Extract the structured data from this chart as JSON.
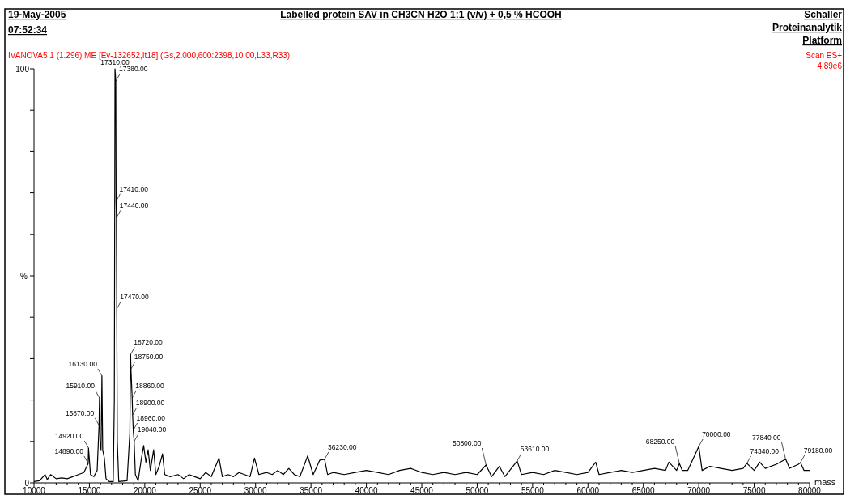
{
  "chart_data": {
    "type": "line",
    "title": "Labelled protein SAV in CH3CN H2O 1:1 (v/v) + 0,5 % HCOOH",
    "subtitle": "IVANOVA5  1 (1.296) ME [Ev-132652,It18] (Gs,2.000,600:2398,10.00,L33,R33)",
    "xlabel": "mass",
    "ylabel": "%",
    "color": "#000000",
    "x": [
      10000,
      10500,
      11000,
      11200,
      11500,
      12000,
      12500,
      13000,
      13500,
      14000,
      14500,
      14890,
      14920,
      15100,
      15400,
      15700,
      15870,
      15910,
      15960,
      16050,
      16130,
      16200,
      16350,
      16500,
      16800,
      17150,
      17250,
      17300,
      17310,
      17380,
      17410,
      17440,
      17470,
      17520,
      17650,
      18400,
      18650,
      18720,
      18750,
      18860,
      18900,
      18960,
      19040,
      19150,
      19400,
      19700,
      19900,
      20100,
      20300,
      20500,
      20800,
      21000,
      21300,
      21600,
      21800,
      22300,
      23000,
      23500,
      24000,
      24500,
      25000,
      25500,
      26000,
      26700,
      27000,
      27500,
      28000,
      28500,
      29000,
      29500,
      29900,
      30300,
      31000,
      31500,
      32000,
      32500,
      33000,
      33500,
      34000,
      34700,
      35200,
      35800,
      36230,
      36500,
      37000,
      38000,
      39000,
      40000,
      41000,
      42000,
      43000,
      44000,
      45000,
      46000,
      47000,
      48000,
      49000,
      50000,
      50800,
      51300,
      52000,
      52500,
      53610,
      54000,
      55000,
      56000,
      57000,
      58000,
      59000,
      60000,
      60700,
      61000,
      62000,
      63000,
      64000,
      65000,
      66000,
      67000,
      67300,
      68000,
      68250,
      68500,
      69000,
      70000,
      70300,
      71000,
      72000,
      73000,
      74000,
      74340,
      75000,
      75500,
      76000,
      77000,
      77840,
      78200,
      79000,
      79180,
      79500,
      80000
    ],
    "values": [
      0.3,
      0.5,
      2,
      0.8,
      2,
      1,
      1.2,
      1,
      1.5,
      2,
      2.5,
      4.7,
      8.4,
      2,
      1.5,
      3,
      13.9,
      20.5,
      10,
      8,
      25.8,
      8,
      6,
      1,
      0.3,
      0.3,
      20,
      85,
      100,
      97,
      68,
      64,
      42,
      10,
      0.3,
      0.5,
      12,
      31,
      27.5,
      20.5,
      16.4,
      12.7,
      10,
      2,
      0.5,
      6,
      9,
      5,
      8,
      3,
      8,
      2,
      4,
      7,
      2,
      1.5,
      2,
      1,
      2,
      1.5,
      1,
      2.5,
      1.5,
      6,
      1.5,
      2,
      1.5,
      2.5,
      2,
      1.5,
      6,
      2,
      2.5,
      2,
      3,
      2,
      3.5,
      2,
      1.5,
      6.5,
      2,
      5.5,
      5.7,
      2,
      2.5,
      2,
      2.5,
      3,
      2.5,
      2,
      3,
      3.5,
      2.5,
      2,
      2.5,
      2,
      2.5,
      2,
      4.3,
      1.5,
      4,
      1.5,
      5.3,
      2,
      2.5,
      2,
      3,
      2.5,
      2,
      2.5,
      5,
      2,
      2.5,
      3,
      2.5,
      3,
      3.5,
      3,
      5,
      3,
      4.7,
      3,
      3,
      8.8,
      3,
      4,
      3.5,
      3,
      3.5,
      4.7,
      3,
      5,
      3.5,
      4.5,
      5.7,
      3.5,
      4.5,
      4.9,
      3,
      3
    ],
    "xlim": [
      10000,
      80000
    ],
    "xticks": [
      10000,
      {
        "value": 11000,
        "label": null
      },
      {
        "value": 12000,
        "label": null
      },
      {
        "value": 13000,
        "label": null
      },
      {
        "value": 14000,
        "label": null
      },
      15000,
      {
        "value": 16000,
        "label": null
      },
      {
        "value": 17000,
        "label": null
      },
      {
        "value": 18000,
        "label": null
      },
      {
        "value": 19000,
        "label": null
      },
      20000,
      {
        "value": 21000,
        "label": null
      },
      {
        "value": 22000,
        "label": null
      },
      {
        "value": 23000,
        "label": null
      },
      {
        "value": 24000,
        "label": null
      },
      25000,
      {
        "value": 26000,
        "label": null
      },
      {
        "value": 27000,
        "label": null
      },
      {
        "value": 28000,
        "label": null
      },
      {
        "value": 29000,
        "label": null
      },
      30000,
      {
        "value": 31000,
        "label": null
      },
      {
        "value": 32000,
        "label": null
      },
      {
        "value": 33000,
        "label": null
      },
      {
        "value": 34000,
        "label": null
      },
      35000,
      {
        "value": 36000,
        "label": null
      },
      {
        "value": 37000,
        "label": null
      },
      {
        "value": 38000,
        "label": null
      },
      {
        "value": 39000,
        "label": null
      },
      40000,
      {
        "value": 41000,
        "label": null
      },
      {
        "value": 42000,
        "label": null
      },
      {
        "value": 43000,
        "label": null
      },
      {
        "value": 44000,
        "label": null
      },
      45000,
      {
        "value": 46000,
        "label": null
      },
      {
        "value": 47000,
        "label": null
      },
      {
        "value": 48000,
        "label": null
      },
      {
        "value": 49000,
        "label": null
      },
      50000,
      {
        "value": 51000,
        "label": null
      },
      {
        "value": 52000,
        "label": null
      },
      {
        "value": 53000,
        "label": null
      },
      {
        "value": 54000,
        "label": null
      },
      55000,
      {
        "value": 56000,
        "label": null
      },
      {
        "value": 57000,
        "label": null
      },
      {
        "value": 58000,
        "label": null
      },
      {
        "value": 59000,
        "label": null
      },
      60000,
      {
        "value": 61000,
        "label": null
      },
      {
        "value": 62000,
        "label": null
      },
      {
        "value": 63000,
        "label": null
      },
      {
        "value": 64000,
        "label": null
      },
      65000,
      {
        "value": 66000,
        "label": null
      },
      {
        "value": 67000,
        "label": null
      },
      {
        "value": 68000,
        "label": null
      },
      {
        "value": 69000,
        "label": null
      },
      70000,
      {
        "value": 71000,
        "label": null
      },
      {
        "value": 72000,
        "label": null
      },
      {
        "value": 73000,
        "label": null
      },
      {
        "value": 74000,
        "label": null
      },
      75000,
      {
        "value": 76000,
        "label": null
      },
      {
        "value": 77000,
        "label": null
      },
      {
        "value": 78000,
        "label": null
      },
      {
        "value": 79000,
        "label": null
      },
      80000
    ],
    "ylim": [
      0,
      100
    ],
    "yticks": [
      0,
      {
        "value": 10,
        "label": null
      },
      {
        "value": 20,
        "label": null
      },
      {
        "value": 30,
        "label": null
      },
      {
        "value": 40,
        "label": null
      },
      {
        "value": 50,
        "label": null
      },
      {
        "value": 60,
        "label": null
      },
      {
        "value": 70,
        "label": null
      },
      {
        "value": 80,
        "label": null
      },
      {
        "value": 90,
        "label": null
      },
      100
    ],
    "annotations": [
      "19-May-2005",
      "07:52:34",
      "Schaller Proteinanalytik Platform",
      "Scan ES+",
      "4.89e6",
      {
        "text": "17310.00",
        "x": 17310,
        "y": 100
      },
      {
        "text": "17380.00",
        "x": 17380,
        "y": 97
      },
      {
        "text": "17410.00",
        "x": 17410,
        "y": 68
      },
      {
        "text": "17440.00",
        "x": 17440,
        "y": 64
      },
      {
        "text": "17470.00",
        "x": 17470,
        "y": 42
      },
      {
        "text": "18720.00",
        "x": 18720,
        "y": 31
      },
      {
        "text": "18750.00",
        "x": 18750,
        "y": 27.5
      },
      {
        "text": "18860.00",
        "x": 18860,
        "y": 20.5
      },
      {
        "text": "18900.00",
        "x": 18900,
        "y": 16.4
      },
      {
        "text": "18960.00",
        "x": 18960,
        "y": 12.7
      },
      {
        "text": "19040.00",
        "x": 19040,
        "y": 10
      },
      {
        "text": "16130.00",
        "x": 16130,
        "y": 25.8
      },
      {
        "text": "15910.00",
        "x": 15910,
        "y": 20.5
      },
      {
        "text": "15870.00",
        "x": 15870,
        "y": 13.9
      },
      {
        "text": "14920.00",
        "x": 14920,
        "y": 8.4
      },
      {
        "text": "14890.00",
        "x": 14890,
        "y": 4.7
      },
      {
        "text": "36230.00",
        "x": 36230,
        "y": 5.7
      },
      {
        "text": "50800.00",
        "x": 50800,
        "y": 4.3
      },
      {
        "text": "53610.00",
        "x": 53610,
        "y": 5.3
      },
      {
        "text": "68250.00",
        "x": 68250,
        "y": 4.7
      },
      {
        "text": "70000.00",
        "x": 70000,
        "y": 8.8
      },
      {
        "text": "74340.00",
        "x": 74340,
        "y": 4.7
      },
      {
        "text": "77840.00",
        "x": 77840,
        "y": 5.7
      },
      {
        "text": "79180.00",
        "x": 79180,
        "y": 4.9
      }
    ]
  }
}
